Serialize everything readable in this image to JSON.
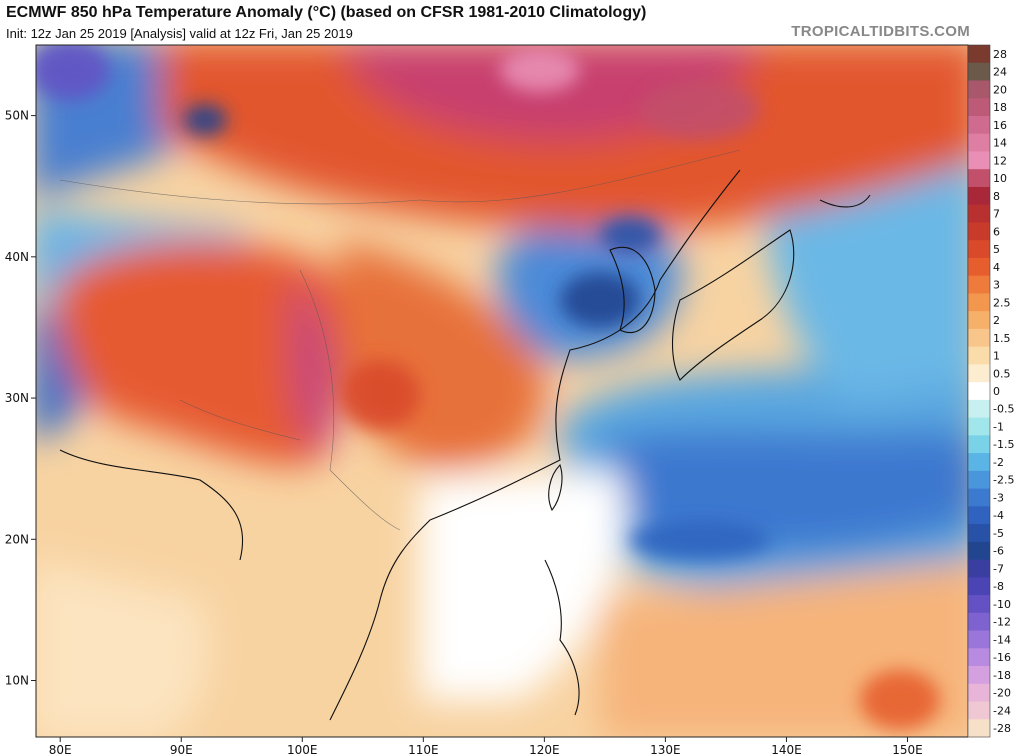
{
  "header": {
    "title": "ECMWF 850 hPa Temperature Anomaly (°C) (based on CFSR 1981-2010 Climatology)",
    "subtitle": "Init: 12z Jan 25 2019   [Analysis]   valid at 12z Fri, Jan 25 2019",
    "brand": "TROPICALTIDBITS.COM"
  },
  "map": {
    "lon_range": [
      78,
      155
    ],
    "lat_range": [
      6,
      55
    ],
    "x_ticks": [
      {
        "lon": 80,
        "label": "80E"
      },
      {
        "lon": 90,
        "label": "90E"
      },
      {
        "lon": 100,
        "label": "100E"
      },
      {
        "lon": 110,
        "label": "110E"
      },
      {
        "lon": 120,
        "label": "120E"
      },
      {
        "lon": 130,
        "label": "130E"
      },
      {
        "lon": 140,
        "label": "140E"
      },
      {
        "lon": 150,
        "label": "150E"
      }
    ],
    "y_ticks": [
      {
        "lat": 50,
        "label": "50N"
      },
      {
        "lat": 40,
        "label": "40N"
      },
      {
        "lat": 30,
        "label": "30N"
      },
      {
        "lat": 20,
        "label": "20N"
      },
      {
        "lat": 10,
        "label": "10N"
      }
    ]
  },
  "colorbar": {
    "levels": [
      {
        "label": "28",
        "color": "#7a3b2e"
      },
      {
        "label": "24",
        "color": "#6b5a4a"
      },
      {
        "label": "20",
        "color": "#a8586a"
      },
      {
        "label": "18",
        "color": "#bc5a78"
      },
      {
        "label": "16",
        "color": "#cf6b8e"
      },
      {
        "label": "14",
        "color": "#de7ea3"
      },
      {
        "label": "12",
        "color": "#e98fb5"
      },
      {
        "label": "10",
        "color": "#c2506a"
      },
      {
        "label": "8",
        "color": "#a8283a"
      },
      {
        "label": "7",
        "color": "#b8302f"
      },
      {
        "label": "6",
        "color": "#c83a2a"
      },
      {
        "label": "5",
        "color": "#d94a2a"
      },
      {
        "label": "4",
        "color": "#e65e2e"
      },
      {
        "label": "3",
        "color": "#ee7a3c"
      },
      {
        "label": "2.5",
        "color": "#f3964e"
      },
      {
        "label": "2",
        "color": "#f6b06a"
      },
      {
        "label": "1.5",
        "color": "#f8c68a"
      },
      {
        "label": "1",
        "color": "#fadcaa"
      },
      {
        "label": "0.5",
        "color": "#fcecd0"
      },
      {
        "label": "0",
        "color": "#ffffff"
      },
      {
        "label": "-0.5",
        "color": "#c8f0f0"
      },
      {
        "label": "-1",
        "color": "#a0e6ea"
      },
      {
        "label": "-1.5",
        "color": "#7ad2e8"
      },
      {
        "label": "-2",
        "color": "#5ab4e6"
      },
      {
        "label": "-2.5",
        "color": "#4a96dc"
      },
      {
        "label": "-3",
        "color": "#3c7ad0"
      },
      {
        "label": "-4",
        "color": "#2f63bf"
      },
      {
        "label": "-5",
        "color": "#2752a8"
      },
      {
        "label": "-6",
        "color": "#224590"
      },
      {
        "label": "-7",
        "color": "#3a3ea0"
      },
      {
        "label": "-8",
        "color": "#4a44b4"
      },
      {
        "label": "-10",
        "color": "#6452c4"
      },
      {
        "label": "-12",
        "color": "#7e62d0"
      },
      {
        "label": "-14",
        "color": "#9a76da"
      },
      {
        "label": "-16",
        "color": "#b88ae0"
      },
      {
        "label": "-18",
        "color": "#d4a0e0"
      },
      {
        "label": "-20",
        "color": "#e8b4d8"
      },
      {
        "label": "-24",
        "color": "#f0c8d4"
      },
      {
        "label": "-28",
        "color": "#f6e0c8"
      }
    ]
  }
}
